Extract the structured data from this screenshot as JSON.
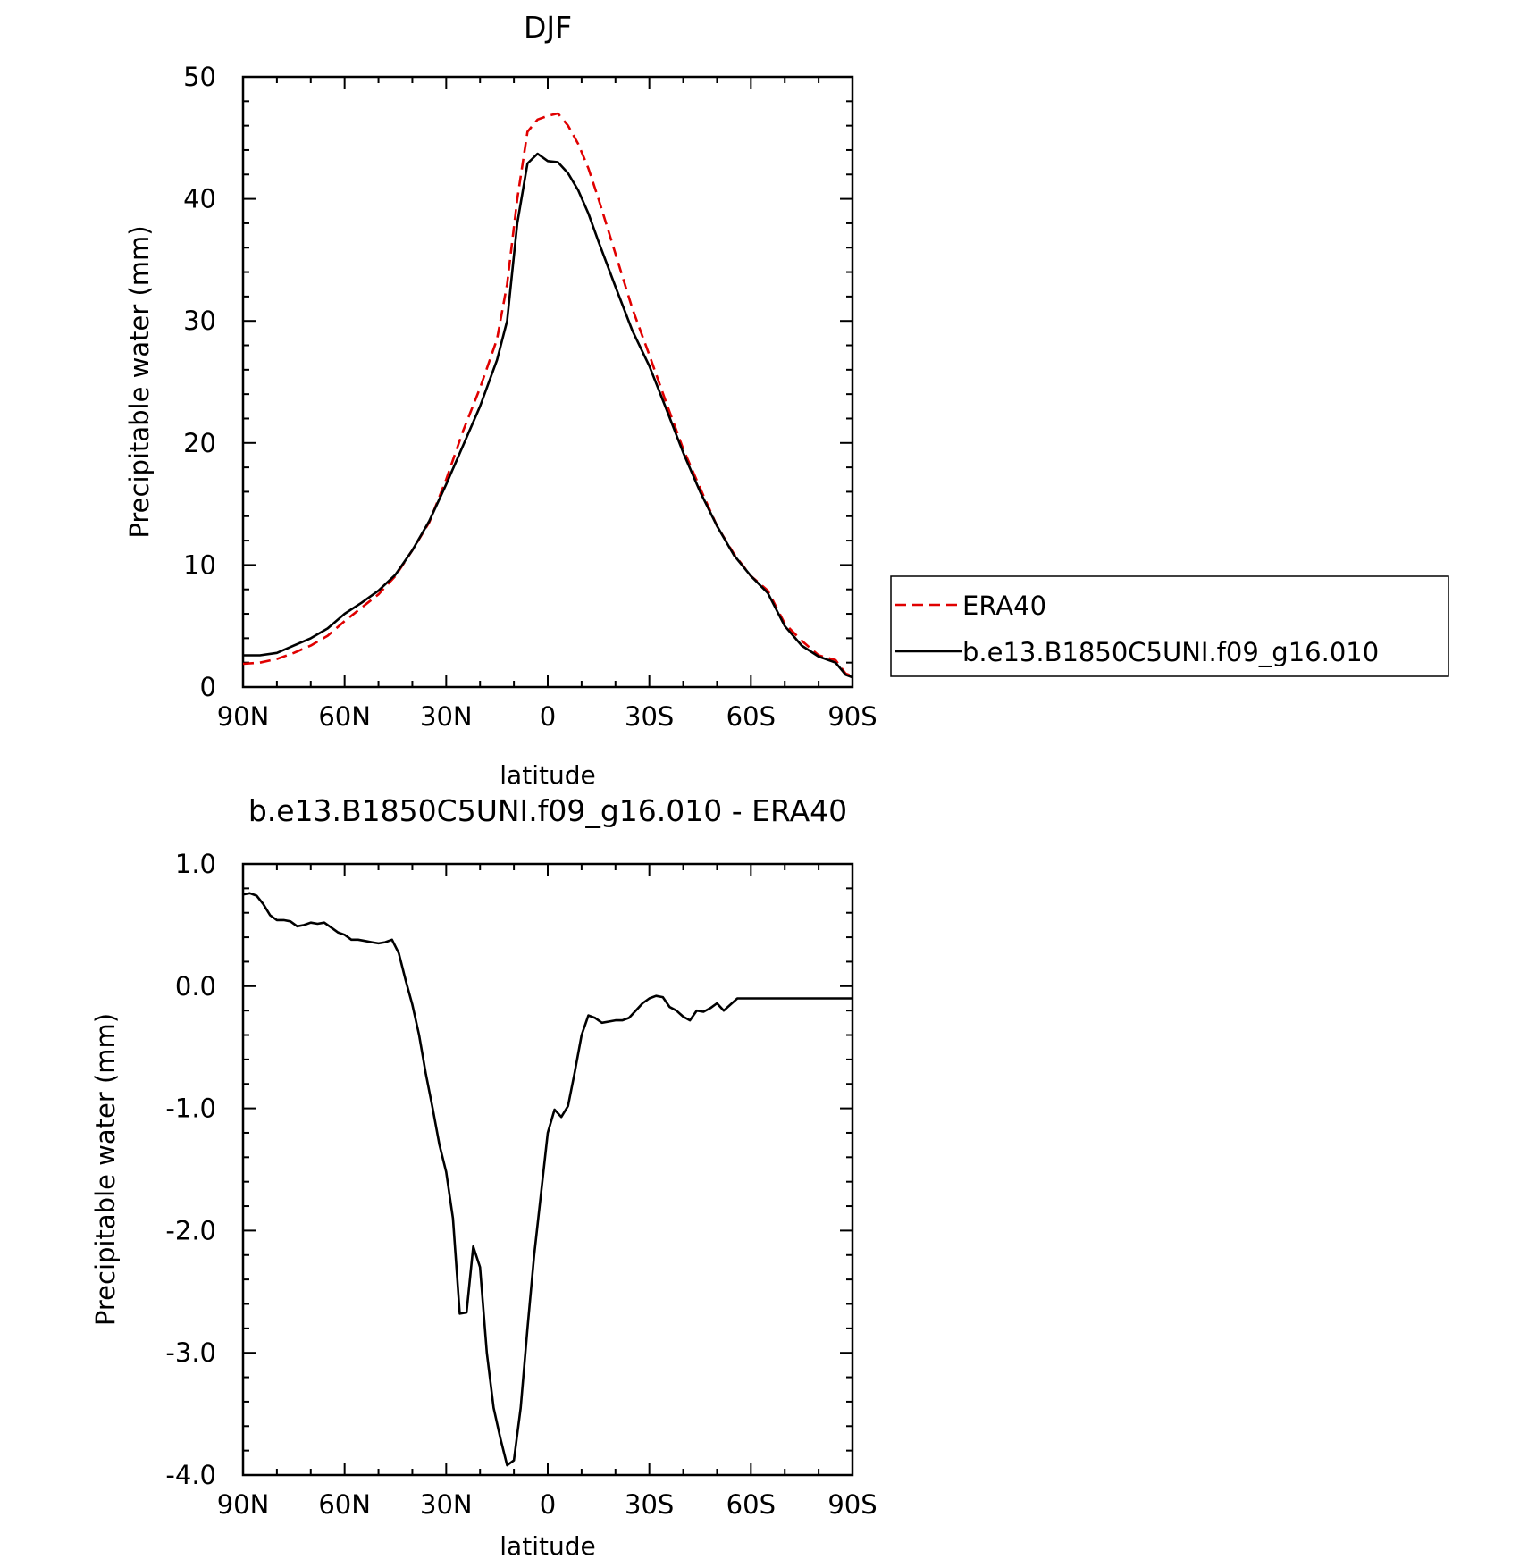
{
  "chart_data": [
    {
      "type": "line",
      "title": "DJF",
      "xlabel": "latitude",
      "ylabel": "Precipitable water (mm)",
      "xlim": [
        90,
        -90
      ],
      "ylim": [
        0,
        50
      ],
      "xticks": [
        {
          "value": 90,
          "label": "90N"
        },
        {
          "value": 60,
          "label": "60N"
        },
        {
          "value": 30,
          "label": "30N"
        },
        {
          "value": 0,
          "label": "0"
        },
        {
          "value": -30,
          "label": "30S"
        },
        {
          "value": -60,
          "label": "60S"
        },
        {
          "value": -90,
          "label": "90S"
        }
      ],
      "yticks": [
        {
          "value": 0,
          "label": "0"
        },
        {
          "value": 10,
          "label": "10"
        },
        {
          "value": 20,
          "label": "20"
        },
        {
          "value": 30,
          "label": "30"
        },
        {
          "value": 40,
          "label": "40"
        },
        {
          "value": 50,
          "label": "50"
        }
      ],
      "legend_position": "right",
      "x": [
        90,
        85,
        80,
        75,
        70,
        65,
        60,
        55,
        50,
        45,
        40,
        35,
        30,
        25,
        20,
        15,
        12,
        9,
        6,
        3,
        0,
        -3,
        -6,
        -9,
        -12,
        -15,
        -20,
        -25,
        -30,
        -35,
        -40,
        -45,
        -50,
        -55,
        -60,
        -65,
        -70,
        -75,
        -80,
        -85,
        -88,
        -90
      ],
      "series": [
        {
          "name": "ERA40",
          "color": "#e00000",
          "dash": "dashed",
          "values": [
            1.9,
            2.0,
            2.3,
            2.8,
            3.4,
            4.2,
            5.4,
            6.5,
            7.6,
            9.1,
            11.2,
            13.5,
            17.0,
            21.0,
            24.5,
            28.5,
            33.0,
            40.0,
            45.5,
            46.5,
            46.8,
            47.0,
            46.0,
            44.5,
            42.5,
            40.0,
            35.5,
            31.0,
            27.2,
            23.3,
            19.5,
            16.3,
            13.2,
            10.9,
            9.1,
            7.9,
            5.2,
            3.8,
            2.6,
            2.2,
            1.1,
            0.9
          ]
        },
        {
          "name": "b.e13.B1850C5UNI.f09_g16.010",
          "color": "#000000",
          "dash": "solid",
          "values": [
            2.6,
            2.6,
            2.8,
            3.4,
            4.0,
            4.8,
            6.0,
            6.9,
            7.9,
            9.2,
            11.2,
            13.6,
            16.6,
            19.8,
            23.0,
            26.8,
            30.0,
            38.0,
            42.9,
            43.7,
            43.1,
            43.0,
            42.1,
            40.7,
            38.8,
            36.5,
            32.8,
            29.2,
            26.3,
            22.8,
            19.2,
            16.0,
            13.2,
            10.8,
            9.1,
            7.7,
            5.0,
            3.4,
            2.5,
            2.0,
            1.0,
            0.8
          ]
        }
      ]
    },
    {
      "type": "line",
      "title": "b.e13.B1850C5UNI.f09_g16.010 - ERA40",
      "xlabel": "latitude",
      "ylabel": "Precipitable water (mm)",
      "xlim": [
        90,
        -90
      ],
      "ylim": [
        -4.0,
        1.0
      ],
      "xticks": [
        {
          "value": 90,
          "label": "90N"
        },
        {
          "value": 60,
          "label": "60N"
        },
        {
          "value": 30,
          "label": "30N"
        },
        {
          "value": 0,
          "label": "0"
        },
        {
          "value": -30,
          "label": "30S"
        },
        {
          "value": -60,
          "label": "60S"
        },
        {
          "value": -90,
          "label": "90S"
        }
      ],
      "yticks": [
        {
          "value": 1.0,
          "label": "1.0"
        },
        {
          "value": 0.0,
          "label": "0.0"
        },
        {
          "value": -1.0,
          "label": "-1.0"
        },
        {
          "value": -2.0,
          "label": "-2.0"
        },
        {
          "value": -3.0,
          "label": "-3.0"
        },
        {
          "value": -4.0,
          "label": "-4.0"
        }
      ],
      "x": [
        90,
        88,
        86,
        84,
        82,
        80,
        78,
        76,
        74,
        72,
        70,
        68,
        66,
        64,
        62,
        60,
        58,
        56,
        54,
        52,
        50,
        48,
        46,
        44,
        42,
        40,
        38,
        36,
        34,
        32,
        30,
        28,
        26,
        24,
        22,
        20,
        18,
        16,
        14,
        12,
        10,
        8,
        6,
        4,
        2,
        0,
        -2,
        -4,
        -6,
        -8,
        -10,
        -12,
        -14,
        -16,
        -18,
        -20,
        -22,
        -24,
        -26,
        -28,
        -30,
        -32,
        -34,
        -36,
        -38,
        -40,
        -42,
        -44,
        -46,
        -48,
        -50,
        -52,
        -54,
        -56,
        -58,
        -60,
        -62,
        -64,
        -66,
        -68,
        -70,
        -72,
        -74,
        -76,
        -78,
        -80,
        -82,
        -84,
        -86,
        -88,
        -90
      ],
      "series": [
        {
          "name": "",
          "color": "#000000",
          "dash": "solid",
          "values": [
            0.75,
            0.76,
            0.74,
            0.67,
            0.58,
            0.54,
            0.54,
            0.53,
            0.49,
            0.5,
            0.52,
            0.51,
            0.52,
            0.48,
            0.44,
            0.42,
            0.38,
            0.38,
            0.37,
            0.36,
            0.35,
            0.36,
            0.38,
            0.27,
            0.05,
            -0.15,
            -0.4,
            -0.72,
            -1.0,
            -1.3,
            -1.52,
            -1.9,
            -2.68,
            -2.67,
            -2.13,
            -2.3,
            -3.0,
            -3.45,
            -3.7,
            -3.92,
            -3.88,
            -3.45,
            -2.8,
            -2.2,
            -1.7,
            -1.2,
            -1.01,
            -1.07,
            -0.98,
            -0.7,
            -0.4,
            -0.24,
            -0.26,
            -0.3,
            -0.29,
            -0.28,
            -0.28,
            -0.26,
            -0.2,
            -0.14,
            -0.1,
            -0.08,
            -0.09,
            -0.17,
            -0.2,
            -0.25,
            -0.28,
            -0.2,
            -0.21,
            -0.18,
            -0.14,
            -0.2,
            -0.15,
            -0.1,
            -0.1,
            -0.1,
            -0.1,
            -0.1,
            -0.1,
            -0.1,
            -0.1,
            -0.1,
            -0.1,
            -0.1,
            -0.1,
            -0.1,
            -0.1,
            -0.1,
            -0.1,
            -0.1,
            -0.1
          ]
        }
      ]
    }
  ]
}
